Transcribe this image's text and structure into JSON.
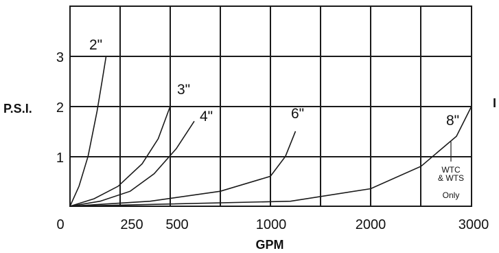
{
  "chart_data": {
    "type": "line",
    "xlabel": "GPM",
    "ylabel": "P.S.I.",
    "ylabel_right_fragment": "I",
    "x_tick_labels": [
      "0",
      "250",
      "500",
      "1000",
      "2000",
      "3000"
    ],
    "y_tick_labels": [
      "1",
      "2",
      "3"
    ],
    "ylim": [
      0,
      4
    ],
    "grid": true,
    "series": [
      {
        "name": "2\"",
        "x": [
          0,
          45,
          90,
          135,
          160,
          180
        ],
        "y": [
          0,
          0.4,
          1.0,
          1.9,
          2.5,
          3.0
        ]
      },
      {
        "name": "3\"",
        "x": [
          0,
          120,
          240,
          360,
          440,
          500
        ],
        "y": [
          0,
          0.15,
          0.4,
          0.85,
          1.35,
          2.0
        ]
      },
      {
        "name": "4\"",
        "x": [
          0,
          150,
          300,
          420,
          530,
          620
        ],
        "y": [
          0,
          0.1,
          0.3,
          0.65,
          1.15,
          1.7
        ]
      },
      {
        "name": "6\"",
        "x": [
          0,
          400,
          750,
          1000,
          1150,
          1250
        ],
        "y": [
          0,
          0.1,
          0.3,
          0.6,
          1.0,
          1.5
        ]
      },
      {
        "name": "8\"",
        "x": [
          0,
          1200,
          2000,
          2500,
          2850,
          3000
        ],
        "y": [
          0,
          0.1,
          0.35,
          0.8,
          1.4,
          2.0
        ]
      }
    ],
    "annotations": [
      {
        "text": "WTC",
        "series": "8\""
      },
      {
        "text": "& WTS",
        "series": "8\""
      },
      {
        "text": "Only",
        "series": "8\""
      }
    ]
  }
}
